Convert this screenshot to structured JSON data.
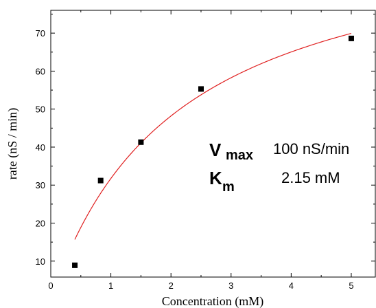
{
  "chart_data": {
    "type": "scatter",
    "title": "",
    "xlabel": "Concentration (mM)",
    "ylabel": "rate  (nS / min)",
    "xlim": [
      0,
      5.4
    ],
    "ylim": [
      5.8,
      76
    ],
    "x_ticks": [
      0,
      1,
      2,
      3,
      4,
      5
    ],
    "y_ticks": [
      10,
      20,
      30,
      40,
      50,
      60,
      70
    ],
    "grid": false,
    "legend": "none",
    "series": [
      {
        "marker": "square",
        "color": "#000000",
        "points": [
          {
            "x": 0.4,
            "y": 8.9
          },
          {
            "x": 0.83,
            "y": 31.2
          },
          {
            "x": 1.5,
            "y": 41.3
          },
          {
            "x": 2.5,
            "y": 55.3
          },
          {
            "x": 5.0,
            "y": 68.6
          }
        ]
      }
    ],
    "fit": {
      "type": "line",
      "model": "michaelis-menten",
      "color": "#e02020",
      "vmax": 100,
      "km": 2.15,
      "x_range": [
        0.4,
        5.0
      ]
    },
    "annotations": {
      "vmax_symbol": "V",
      "vmax_sub": "max",
      "vmax_value": "100 nS/min",
      "km_symbol": "K",
      "km_sub": "m",
      "km_value": "2.15 mM"
    }
  }
}
